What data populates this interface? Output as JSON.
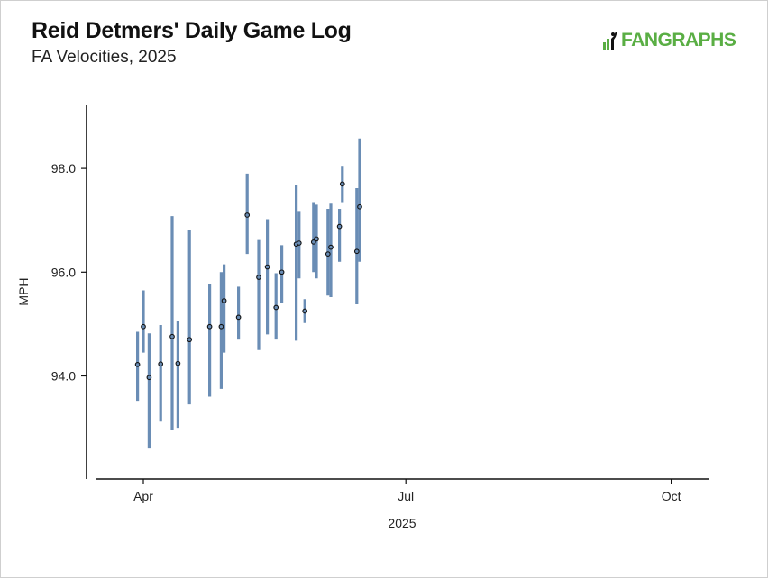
{
  "header": {
    "title": "Reid Detmers' Daily Game Log",
    "subtitle": "FA Velocities, 2025",
    "logo_text": "FANGRAPHS"
  },
  "colors": {
    "bar": "#6a8db5",
    "point_fill": "#6a8db5",
    "point_stroke": "#111111",
    "logo": "#5aae44"
  },
  "chart_data": {
    "type": "scatter",
    "title": "Reid Detmers' Daily Game Log",
    "subtitle": "FA Velocities, 2025",
    "xlabel": "2025",
    "ylabel": "MPH",
    "x_ticks": [
      "Apr",
      "Jul",
      "Oct"
    ],
    "y_ticks": [
      "94.0",
      "96.0",
      "98.0"
    ],
    "ylim": [
      92.0,
      99.2
    ],
    "grid": false,
    "legend": "none",
    "series": [
      {
        "points": [
          {
            "date": "2025-03-30",
            "mph": 94.22,
            "min": 93.52,
            "max": 94.85
          },
          {
            "date": "2025-04-01",
            "mph": 94.95,
            "min": 94.45,
            "max": 95.65
          },
          {
            "date": "2025-04-03",
            "mph": 93.97,
            "min": 92.6,
            "max": 94.82
          },
          {
            "date": "2025-04-07",
            "mph": 94.23,
            "min": 93.12,
            "max": 94.98
          },
          {
            "date": "2025-04-11",
            "mph": 94.76,
            "min": 92.95,
            "max": 97.08
          },
          {
            "date": "2025-04-13",
            "mph": 94.24,
            "min": 93.0,
            "max": 95.05
          },
          {
            "date": "2025-04-17",
            "mph": 94.7,
            "min": 93.45,
            "max": 96.82
          },
          {
            "date": "2025-04-24",
            "mph": 94.95,
            "min": 93.6,
            "max": 95.77
          },
          {
            "date": "2025-04-28",
            "mph": 94.95,
            "min": 93.75,
            "max": 96.0
          },
          {
            "date": "2025-04-29",
            "mph": 95.45,
            "min": 94.45,
            "max": 96.15
          },
          {
            "date": "2025-05-04",
            "mph": 95.13,
            "min": 94.7,
            "max": 95.72
          },
          {
            "date": "2025-05-07",
            "mph": 97.1,
            "min": 96.35,
            "max": 97.9
          },
          {
            "date": "2025-05-11",
            "mph": 95.9,
            "min": 94.5,
            "max": 96.62
          },
          {
            "date": "2025-05-14",
            "mph": 96.1,
            "min": 94.8,
            "max": 97.02
          },
          {
            "date": "2025-05-17",
            "mph": 95.32,
            "min": 94.7,
            "max": 95.98
          },
          {
            "date": "2025-05-19",
            "mph": 96.0,
            "min": 95.4,
            "max": 96.52
          },
          {
            "date": "2025-05-24",
            "mph": 96.54,
            "min": 94.68,
            "max": 97.68
          },
          {
            "date": "2025-05-25",
            "mph": 96.56,
            "min": 95.88,
            "max": 97.18
          },
          {
            "date": "2025-05-27",
            "mph": 95.25,
            "min": 95.02,
            "max": 95.48
          },
          {
            "date": "2025-05-30",
            "mph": 96.58,
            "min": 96.0,
            "max": 97.35
          },
          {
            "date": "2025-05-31",
            "mph": 96.64,
            "min": 95.88,
            "max": 97.3
          },
          {
            "date": "2025-06-04",
            "mph": 96.35,
            "min": 95.55,
            "max": 97.22
          },
          {
            "date": "2025-06-05",
            "mph": 96.48,
            "min": 95.52,
            "max": 97.32
          },
          {
            "date": "2025-06-08",
            "mph": 96.88,
            "min": 96.2,
            "max": 97.22
          },
          {
            "date": "2025-06-09",
            "mph": 97.7,
            "min": 97.35,
            "max": 98.05
          },
          {
            "date": "2025-06-14",
            "mph": 96.4,
            "min": 95.38,
            "max": 97.62
          },
          {
            "date": "2025-06-15",
            "mph": 97.26,
            "min": 96.2,
            "max": 98.58
          }
        ]
      }
    ]
  }
}
